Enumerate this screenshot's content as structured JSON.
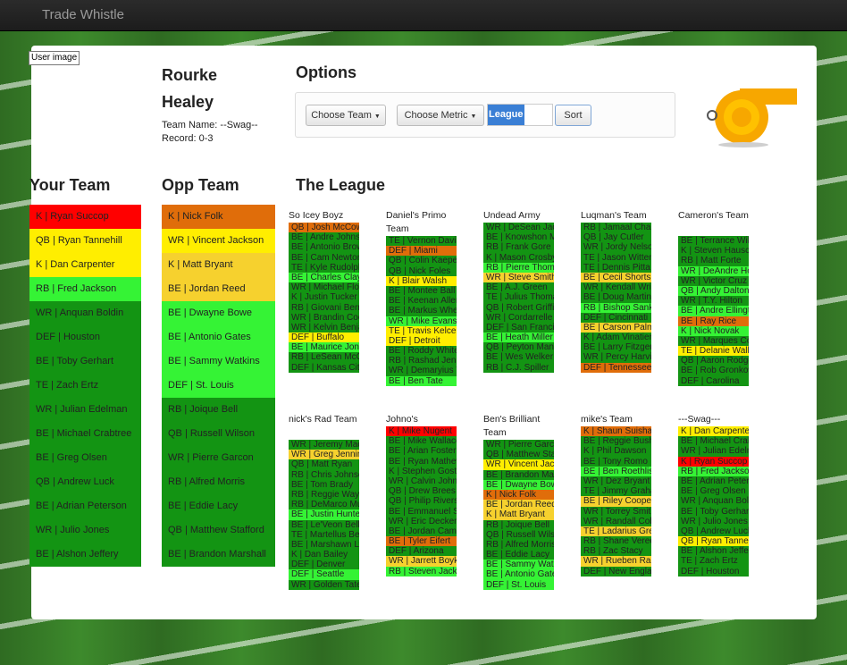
{
  "app": {
    "brand": "Trade Whistle"
  },
  "colors": {
    "red": "#ff0000",
    "yellow": "#ffee00",
    "ltyellow": "#f6d12e",
    "orange": "#e06d0a",
    "ltgreen": "#35f335",
    "green": "#139413",
    "white": "#ffffff"
  },
  "user": {
    "image_alt": "User image",
    "name": "Rourke Healey",
    "team_name": "Team Name: --Swag--",
    "record": "Record: 0-3"
  },
  "options": {
    "title": "Options",
    "choose_team": "Choose Team",
    "choose_metric": "Choose Metric",
    "league_value": "League",
    "sort": "Sort"
  },
  "your_team": {
    "title": "Your Team",
    "players": [
      {
        "label": "K | Ryan Succop",
        "color": "red"
      },
      {
        "label": "QB | Ryan Tannehill",
        "color": "yellow"
      },
      {
        "label": "K | Dan Carpenter",
        "color": "yellow"
      },
      {
        "label": "RB | Fred Jackson",
        "color": "ltgreen"
      },
      {
        "label": "WR | Anquan Boldin",
        "color": "green"
      },
      {
        "label": "DEF | Houston",
        "color": "green"
      },
      {
        "label": "BE | Toby Gerhart",
        "color": "green"
      },
      {
        "label": "TE | Zach Ertz",
        "color": "green"
      },
      {
        "label": "WR | Julian Edelman",
        "color": "green"
      },
      {
        "label": "BE | Michael Crabtree",
        "color": "green"
      },
      {
        "label": "BE | Greg Olsen",
        "color": "green"
      },
      {
        "label": "QB | Andrew Luck",
        "color": "green"
      },
      {
        "label": "BE | Adrian Peterson",
        "color": "green"
      },
      {
        "label": "WR | Julio Jones",
        "color": "green"
      },
      {
        "label": "BE | Alshon Jeffery",
        "color": "green"
      }
    ]
  },
  "opp_team": {
    "title": "Opp Team",
    "players": [
      {
        "label": "K | Nick Folk",
        "color": "orange"
      },
      {
        "label": "WR | Vincent Jackson",
        "color": "yellow"
      },
      {
        "label": "K | Matt Bryant",
        "color": "ltyellow"
      },
      {
        "label": "BE | Jordan Reed",
        "color": "ltyellow"
      },
      {
        "label": "BE | Dwayne Bowe",
        "color": "ltgreen"
      },
      {
        "label": "BE | Antonio Gates",
        "color": "ltgreen"
      },
      {
        "label": "BE | Sammy Watkins",
        "color": "ltgreen"
      },
      {
        "label": "DEF | St. Louis",
        "color": "ltgreen"
      },
      {
        "label": "RB | Joique Bell",
        "color": "green"
      },
      {
        "label": "QB | Russell Wilson",
        "color": "green"
      },
      {
        "label": "WR | Pierre Garcon",
        "color": "green"
      },
      {
        "label": "RB | Alfred Morris",
        "color": "green"
      },
      {
        "label": "BE | Eddie Lacy",
        "color": "green"
      },
      {
        "label": "QB | Matthew Stafford",
        "color": "green"
      },
      {
        "label": "BE | Brandon Marshall",
        "color": "green"
      }
    ]
  },
  "league": {
    "title": "The League",
    "teams": [
      {
        "name": "So Icey Boyz",
        "rows": [
          {
            "label": "QB | Josh McCown",
            "color": "orange"
          },
          {
            "label": "BE | Andre Johnson",
            "color": "green"
          },
          {
            "label": "BE | Antonio Brown",
            "color": "green"
          },
          {
            "label": "BE | Cam Newton",
            "color": "green"
          },
          {
            "label": "TE | Kyle Rudolph",
            "color": "green"
          },
          {
            "label": "BE | Charles Clay",
            "color": "ltgreen"
          },
          {
            "label": "WR | Michael Floyd",
            "color": "green"
          },
          {
            "label": "K | Justin Tucker",
            "color": "green"
          },
          {
            "label": "RB | Giovani Bernard",
            "color": "green"
          },
          {
            "label": "WR | Brandin Cooks",
            "color": "green"
          },
          {
            "label": "WR | Kelvin Benjamin",
            "color": "green"
          },
          {
            "label": "DEF | Buffalo",
            "color": "yellow"
          },
          {
            "label": "BE | Maurice Jones",
            "color": "ltgreen"
          },
          {
            "label": "RB | LeSean McCoy",
            "color": "green"
          },
          {
            "label": "DEF | Kansas City",
            "color": "green"
          }
        ]
      },
      {
        "name": "Daniel's Primo Team",
        "rows": [
          {
            "label": "TE | Vernon Davis",
            "color": "green"
          },
          {
            "label": "DEF | Miami",
            "color": "orange"
          },
          {
            "label": "QB | Colin Kaepernick",
            "color": "green"
          },
          {
            "label": "QB | Nick Foles",
            "color": "green"
          },
          {
            "label": "K | Blair Walsh",
            "color": "yellow"
          },
          {
            "label": "BE | Montee Ball",
            "color": "green"
          },
          {
            "label": "BE | Keenan Allen",
            "color": "green"
          },
          {
            "label": "BE | Markus Wheaton",
            "color": "green"
          },
          {
            "label": "WR | Mike Evans",
            "color": "ltgreen"
          },
          {
            "label": "TE | Travis Kelce",
            "color": "yellow"
          },
          {
            "label": "DEF | Detroit",
            "color": "yellow"
          },
          {
            "label": "BE | Roddy White",
            "color": "green"
          },
          {
            "label": "RB | Rashad Jennings",
            "color": "green"
          },
          {
            "label": "WR | Demaryius Thomas",
            "color": "green"
          },
          {
            "label": "BE | Ben Tate",
            "color": "ltgreen"
          }
        ]
      },
      {
        "name": "Undead Army",
        "rows": [
          {
            "label": "WR | DeSean Jackson",
            "color": "green"
          },
          {
            "label": "BE | Knowshon Moreno",
            "color": "green"
          },
          {
            "label": "RB | Frank Gore",
            "color": "green"
          },
          {
            "label": "K | Mason Crosby",
            "color": "green"
          },
          {
            "label": "RB | Pierre Thomas",
            "color": "ltgreen"
          },
          {
            "label": "WR | Steve Smith",
            "color": "ltyellow"
          },
          {
            "label": "BE | A.J. Green",
            "color": "green"
          },
          {
            "label": "TE | Julius Thomas",
            "color": "green"
          },
          {
            "label": "QB | Robert Griffin",
            "color": "green"
          },
          {
            "label": "WR | Cordarrelle Patterson",
            "color": "green"
          },
          {
            "label": "DEF | San Francisco",
            "color": "green"
          },
          {
            "label": "BE | Heath Miller",
            "color": "ltgreen"
          },
          {
            "label": "QB | Peyton Manning",
            "color": "green"
          },
          {
            "label": "BE | Wes Welker",
            "color": "green"
          },
          {
            "label": "RB | C.J. Spiller",
            "color": "green"
          }
        ]
      },
      {
        "name": "Luqman's Team",
        "rows": [
          {
            "label": "RB | Jamaal Charles",
            "color": "green"
          },
          {
            "label": "QB | Jay Cutler",
            "color": "green"
          },
          {
            "label": "WR | Jordy Nelson",
            "color": "green"
          },
          {
            "label": "TE | Jason Witten",
            "color": "green"
          },
          {
            "label": "TE | Dennis Pitta",
            "color": "green"
          },
          {
            "label": "BE | Cecil Shorts",
            "color": "ltyellow"
          },
          {
            "label": "WR | Kendall Wright",
            "color": "green"
          },
          {
            "label": "BE | Doug Martin",
            "color": "green"
          },
          {
            "label": "RB | Bishop Sankey",
            "color": "ltgreen"
          },
          {
            "label": "DEF | Cincinnati",
            "color": "green"
          },
          {
            "label": "BE | Carson Palmer",
            "color": "ltyellow"
          },
          {
            "label": "K | Adam Vinatieri",
            "color": "green"
          },
          {
            "label": "BE | Larry Fitzgerald",
            "color": "green"
          },
          {
            "label": "WR | Percy Harvin",
            "color": "green"
          },
          {
            "label": "DEF | Tennessee",
            "color": "orange"
          }
        ]
      },
      {
        "name": "Cameron's Team",
        "rows": [
          {
            "label": "BE | Terrance Williams",
            "color": "green"
          },
          {
            "label": "K | Steven Hauschka",
            "color": "green"
          },
          {
            "label": "RB | Matt Forte",
            "color": "green"
          },
          {
            "label": "WR | DeAndre Hopkins",
            "color": "ltgreen"
          },
          {
            "label": "WR | Victor Cruz",
            "color": "green"
          },
          {
            "label": "QB | Andy Dalton",
            "color": "ltgreen"
          },
          {
            "label": "WR | T.Y. Hilton",
            "color": "green"
          },
          {
            "label": "BE | Andre Ellington",
            "color": "ltgreen"
          },
          {
            "label": "BE | Ray Rice",
            "color": "orange"
          },
          {
            "label": "K | Nick Novak",
            "color": "ltgreen"
          },
          {
            "label": "WR | Marques Colston",
            "color": "green"
          },
          {
            "label": "TE | Delanie Walker",
            "color": "yellow"
          },
          {
            "label": "QB | Aaron Rodgers",
            "color": "green"
          },
          {
            "label": "BE | Rob Gronkowski",
            "color": "green"
          },
          {
            "label": "DEF | Carolina",
            "color": "green"
          }
        ]
      },
      {
        "name": "nick's Rad Team",
        "rows": [
          {
            "label": "WR | Jeremy Maclin",
            "color": "green"
          },
          {
            "label": "WR | Greg Jennings",
            "color": "ltyellow"
          },
          {
            "label": "QB | Matt Ryan",
            "color": "green"
          },
          {
            "label": "RB | Chris Johnson",
            "color": "green"
          },
          {
            "label": "BE | Tom Brady",
            "color": "green"
          },
          {
            "label": "RB | Reggie Wayne",
            "color": "green"
          },
          {
            "label": "RB | DeMarco Murray",
            "color": "green"
          },
          {
            "label": "BE | Justin Hunter",
            "color": "ltgreen"
          },
          {
            "label": "BE | Le'Veon Bell",
            "color": "green"
          },
          {
            "label": "TE | Martellus Bennett",
            "color": "green"
          },
          {
            "label": "BE | Marshawn Lynch",
            "color": "green"
          },
          {
            "label": "K | Dan Bailey",
            "color": "green"
          },
          {
            "label": "DEF | Denver",
            "color": "green"
          },
          {
            "label": "DEF | Seattle",
            "color": "ltgreen"
          },
          {
            "label": "WR | Golden Tate",
            "color": "green"
          }
        ]
      },
      {
        "name": "Johno's",
        "rows": [
          {
            "label": "K | Mike Nugent",
            "color": "red"
          },
          {
            "label": "BE | Mike Wallace",
            "color": "green"
          },
          {
            "label": "BE | Arian Foster",
            "color": "green"
          },
          {
            "label": "BE | Ryan Mathews",
            "color": "green"
          },
          {
            "label": "K | Stephen Gostkowski",
            "color": "green"
          },
          {
            "label": "WR | Calvin Johnson",
            "color": "green"
          },
          {
            "label": "QB | Drew Brees",
            "color": "green"
          },
          {
            "label": "QB | Philip Rivers",
            "color": "green"
          },
          {
            "label": "BE | Emmanuel Sanders",
            "color": "green"
          },
          {
            "label": "WR | Eric Decker",
            "color": "green"
          },
          {
            "label": "BE | Jordan Cameron",
            "color": "green"
          },
          {
            "label": "BE | Tyler Eifert",
            "color": "orange"
          },
          {
            "label": "DEF | Arizona",
            "color": "green"
          },
          {
            "label": "WR | Jarrett Boykin",
            "color": "ltyellow"
          },
          {
            "label": "RB | Steven Jackson",
            "color": "ltgreen"
          }
        ]
      },
      {
        "name": "Ben's Brilliant Team",
        "rows": [
          {
            "label": "WR | Pierre Garcon",
            "color": "green"
          },
          {
            "label": "QB | Matthew Stafford",
            "color": "green"
          },
          {
            "label": "WR | Vincent Jackson",
            "color": "yellow"
          },
          {
            "label": "BE | Brandon Marshall",
            "color": "green"
          },
          {
            "label": "BE | Dwayne Bowe",
            "color": "ltgreen"
          },
          {
            "label": "K | Nick Folk",
            "color": "orange"
          },
          {
            "label": "BE | Jordan Reed",
            "color": "ltyellow"
          },
          {
            "label": "K | Matt Bryant",
            "color": "ltyellow"
          },
          {
            "label": "RB | Joique Bell",
            "color": "green"
          },
          {
            "label": "QB | Russell Wilson",
            "color": "green"
          },
          {
            "label": "RB | Alfred Morris",
            "color": "green"
          },
          {
            "label": "BE | Eddie Lacy",
            "color": "green"
          },
          {
            "label": "BE | Sammy Watkins",
            "color": "ltgreen"
          },
          {
            "label": "BE | Antonio Gates",
            "color": "ltgreen"
          },
          {
            "label": "DEF | St. Louis",
            "color": "ltgreen"
          }
        ]
      },
      {
        "name": "mike's Team",
        "rows": [
          {
            "label": "K | Shaun Suisham",
            "color": "orange"
          },
          {
            "label": "BE | Reggie Bush",
            "color": "green"
          },
          {
            "label": "K | Phil Dawson",
            "color": "green"
          },
          {
            "label": "BE | Tony Romo",
            "color": "green"
          },
          {
            "label": "BE | Ben Roethlisberger",
            "color": "ltgreen"
          },
          {
            "label": "WR | Dez Bryant",
            "color": "green"
          },
          {
            "label": "TE | Jimmy Graham",
            "color": "green"
          },
          {
            "label": "BE | Riley Cooper",
            "color": "ltyellow"
          },
          {
            "label": "WR | Torrey Smith",
            "color": "green"
          },
          {
            "label": "WR | Randall Cobb",
            "color": "green"
          },
          {
            "label": "TE | Ladarius Green",
            "color": "ltyellow"
          },
          {
            "label": "RB | Shane Vereen",
            "color": "green"
          },
          {
            "label": "RB | Zac Stacy",
            "color": "green"
          },
          {
            "label": "WR | Rueben Randle",
            "color": "ltyellow"
          },
          {
            "label": "DEF | New England",
            "color": "green"
          }
        ]
      },
      {
        "name": "---Swag---",
        "rows": [
          {
            "label": "K | Dan Carpenter",
            "color": "yellow"
          },
          {
            "label": "BE | Michael Crabtree",
            "color": "green"
          },
          {
            "label": "WR | Julian Edelman",
            "color": "green"
          },
          {
            "label": "K | Ryan Succop",
            "color": "red"
          },
          {
            "label": "RB | Fred Jackson",
            "color": "ltgreen"
          },
          {
            "label": "BE | Adrian Peterson",
            "color": "green"
          },
          {
            "label": "BE | Greg Olsen",
            "color": "green"
          },
          {
            "label": "WR | Anquan Boldin",
            "color": "green"
          },
          {
            "label": "BE | Toby Gerhart",
            "color": "green"
          },
          {
            "label": "WR | Julio Jones",
            "color": "green"
          },
          {
            "label": "QB | Andrew Luck",
            "color": "green"
          },
          {
            "label": "QB | Ryan Tannehill",
            "color": "yellow"
          },
          {
            "label": "BE | Alshon Jeffery",
            "color": "green"
          },
          {
            "label": "TE | Zach Ertz",
            "color": "green"
          },
          {
            "label": "DEF | Houston",
            "color": "green"
          }
        ]
      }
    ]
  }
}
